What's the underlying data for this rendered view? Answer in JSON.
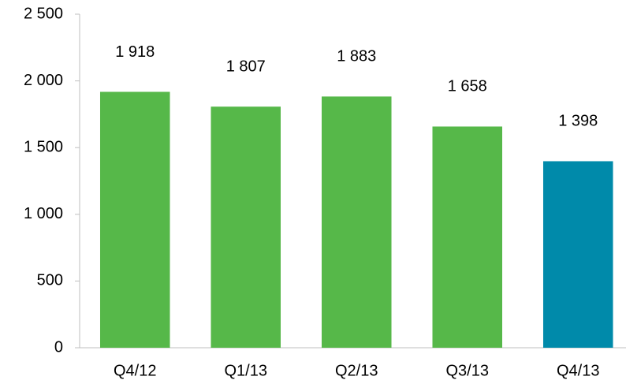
{
  "chart_data": {
    "type": "bar",
    "categories": [
      "Q4/12",
      "Q1/13",
      "Q2/13",
      "Q3/13",
      "Q4/13"
    ],
    "values": [
      1918,
      1807,
      1883,
      1658,
      1398
    ],
    "value_labels": [
      "1 918",
      "1 807",
      "1 883",
      "1 658",
      "1 398"
    ],
    "colors": [
      "#56b849",
      "#56b849",
      "#56b849",
      "#56b849",
      "#008aaa"
    ],
    "ylim": [
      0,
      2500
    ],
    "yticks": [
      0,
      500,
      {
        "value": 1000,
        "label": "1 000"
      },
      {
        "value": 1500,
        "label": "1 500"
      },
      {
        "value": 2000,
        "label": "2 000"
      },
      {
        "value": 2500,
        "label": "2 500"
      }
    ]
  }
}
